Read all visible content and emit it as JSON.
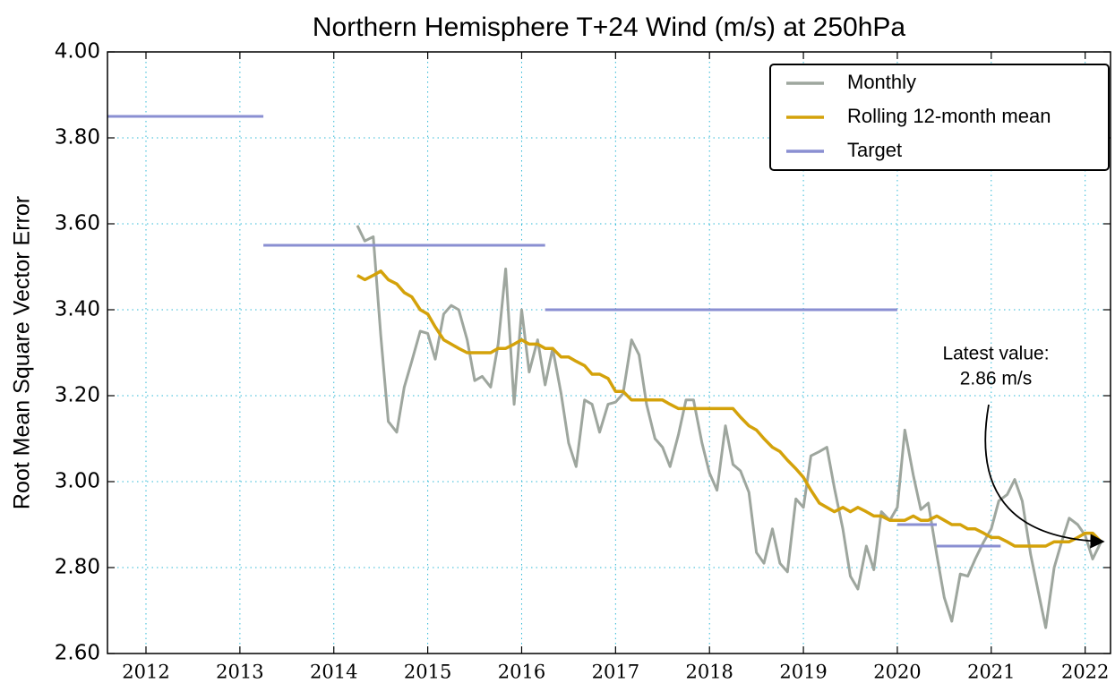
{
  "chart_data": {
    "type": "line",
    "title": "Northern Hemisphere T+24 Wind (m/s) at 250hPa",
    "y_label": "Root Mean Square Vector Error",
    "xlim": [
      2011.59,
      2022.27
    ],
    "xticks": [
      2012,
      2013,
      2014,
      2015,
      2016,
      2017,
      2018,
      2019,
      2020,
      2021,
      2022
    ],
    "ylim": [
      2.6,
      4.0
    ],
    "yticks": [
      {
        "value": 2.6,
        "label": "2.60"
      },
      {
        "value": 2.8,
        "label": "2.80"
      },
      {
        "value": 3.0,
        "label": "3.00"
      },
      {
        "value": 3.2,
        "label": "3.20"
      },
      {
        "value": 3.4,
        "label": "3.40"
      },
      {
        "value": 3.6,
        "label": "3.60"
      },
      {
        "value": 3.8,
        "label": "3.80"
      },
      {
        "value": 4.0,
        "label": "4.00"
      }
    ],
    "grid": true,
    "legend": "upper right",
    "x": [
      2014.25,
      2014.33,
      2014.42,
      2014.5,
      2014.58,
      2014.67,
      2014.75,
      2014.83,
      2014.92,
      2015.0,
      2015.08,
      2015.17,
      2015.25,
      2015.33,
      2015.42,
      2015.5,
      2015.58,
      2015.67,
      2015.75,
      2015.83,
      2015.92,
      2016.0,
      2016.08,
      2016.17,
      2016.25,
      2016.33,
      2016.42,
      2016.5,
      2016.58,
      2016.67,
      2016.75,
      2016.83,
      2016.92,
      2017.0,
      2017.08,
      2017.17,
      2017.25,
      2017.33,
      2017.42,
      2017.5,
      2017.58,
      2017.67,
      2017.75,
      2017.83,
      2017.92,
      2018.0,
      2018.08,
      2018.17,
      2018.25,
      2018.33,
      2018.42,
      2018.5,
      2018.58,
      2018.67,
      2018.75,
      2018.83,
      2018.92,
      2019.0,
      2019.08,
      2019.17,
      2019.25,
      2019.33,
      2019.42,
      2019.5,
      2019.58,
      2019.67,
      2019.75,
      2019.83,
      2019.92,
      2020.0,
      2020.08,
      2020.17,
      2020.25,
      2020.33,
      2020.42,
      2020.5,
      2020.58,
      2020.67,
      2020.75,
      2020.83,
      2020.92,
      2021.0,
      2021.08,
      2021.17,
      2021.25,
      2021.33,
      2021.42,
      2021.5,
      2021.58,
      2021.67,
      2021.75,
      2021.83,
      2021.92,
      2022.0,
      2022.08,
      2022.17
    ],
    "series": [
      {
        "name": "Monthly",
        "color": "#9ea69e",
        "values": [
          3.596,
          3.56,
          3.57,
          3.34,
          3.14,
          3.115,
          3.22,
          3.28,
          3.35,
          3.345,
          3.285,
          3.39,
          3.41,
          3.4,
          3.33,
          3.235,
          3.245,
          3.22,
          3.32,
          3.495,
          3.18,
          3.4,
          3.255,
          3.33,
          3.225,
          3.31,
          3.205,
          3.09,
          3.035,
          3.19,
          3.18,
          3.115,
          3.18,
          3.185,
          3.205,
          3.33,
          3.295,
          3.18,
          3.1,
          3.08,
          3.035,
          3.11,
          3.19,
          3.19,
          3.09,
          3.02,
          2.98,
          3.13,
          3.04,
          3.025,
          2.975,
          2.835,
          2.81,
          2.89,
          2.81,
          2.79,
          2.96,
          2.94,
          3.06,
          3.07,
          3.08,
          2.985,
          2.89,
          2.78,
          2.75,
          2.85,
          2.795,
          2.93,
          2.91,
          2.94,
          3.12,
          3.015,
          2.935,
          2.95,
          2.83,
          2.73,
          2.675,
          2.785,
          2.78,
          2.82,
          2.86,
          2.89,
          2.955,
          2.97,
          3.005,
          2.955,
          2.83,
          2.745,
          2.66,
          2.8,
          2.86,
          2.915,
          2.9,
          2.875,
          2.82,
          2.86
        ]
      },
      {
        "name": "Rolling 12-month mean",
        "color": "#d4a20a",
        "values": [
          3.48,
          3.47,
          3.48,
          3.49,
          3.47,
          3.46,
          3.44,
          3.43,
          3.4,
          3.39,
          3.36,
          3.33,
          3.32,
          3.31,
          3.3,
          3.3,
          3.3,
          3.3,
          3.31,
          3.31,
          3.32,
          3.33,
          3.32,
          3.32,
          3.31,
          3.31,
          3.29,
          3.29,
          3.28,
          3.27,
          3.25,
          3.25,
          3.24,
          3.21,
          3.21,
          3.19,
          3.19,
          3.19,
          3.19,
          3.19,
          3.18,
          3.17,
          3.17,
          3.17,
          3.17,
          3.17,
          3.17,
          3.17,
          3.17,
          3.15,
          3.13,
          3.12,
          3.1,
          3.08,
          3.07,
          3.05,
          3.03,
          3.01,
          2.98,
          2.95,
          2.94,
          2.93,
          2.94,
          2.93,
          2.94,
          2.93,
          2.92,
          2.92,
          2.91,
          2.91,
          2.91,
          2.92,
          2.91,
          2.91,
          2.92,
          2.91,
          2.9,
          2.9,
          2.89,
          2.89,
          2.88,
          2.87,
          2.87,
          2.86,
          2.85,
          2.85,
          2.85,
          2.85,
          2.85,
          2.86,
          2.86,
          2.86,
          2.87,
          2.88,
          2.88,
          2.86
        ]
      },
      {
        "name": "Target",
        "color": "#8a8fd2",
        "segments": [
          {
            "start": 2011.59,
            "end": 2013.25,
            "value": 3.85
          },
          {
            "start": 2013.25,
            "end": 2016.25,
            "value": 3.55
          },
          {
            "start": 2016.25,
            "end": 2020.0,
            "value": 3.4
          },
          {
            "start": 2020.0,
            "end": 2020.42,
            "value": 2.9
          },
          {
            "start": 2020.42,
            "end": 2021.1,
            "value": 2.85
          }
        ]
      }
    ],
    "annotation": [
      "Latest value:",
      "2.86 m/s"
    ]
  }
}
